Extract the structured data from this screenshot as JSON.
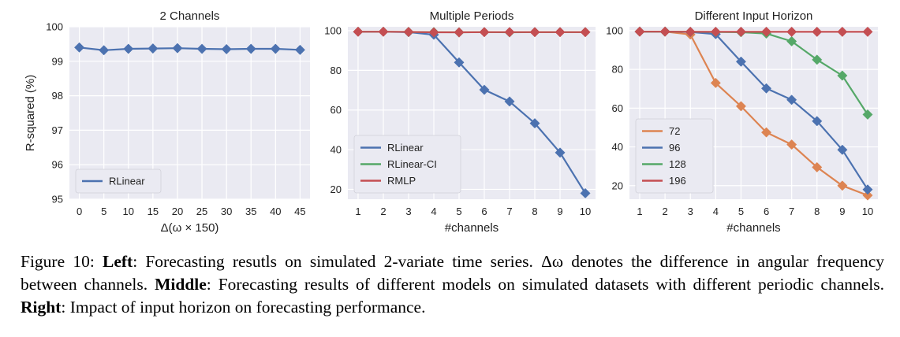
{
  "chart_data": [
    {
      "type": "line",
      "title": "2 Channels",
      "xlabel": "Δ(ω × 150)",
      "ylabel": "R-squared (%)",
      "x": [
        0,
        5,
        10,
        15,
        20,
        25,
        30,
        35,
        40,
        45
      ],
      "ylim": [
        95,
        100
      ],
      "yticks": [
        95,
        96,
        97,
        98,
        99,
        100
      ],
      "grid": true,
      "legend_position": "lower-left",
      "series": [
        {
          "name": "RLinear",
          "color": "#4c72b0",
          "values": [
            99.4,
            99.32,
            99.36,
            99.37,
            99.38,
            99.36,
            99.35,
            99.36,
            99.36,
            99.33
          ]
        }
      ]
    },
    {
      "type": "line",
      "title": "Multiple Periods",
      "xlabel": "#channels",
      "ylabel": "",
      "x": [
        1,
        2,
        3,
        4,
        5,
        6,
        7,
        8,
        9,
        10
      ],
      "ylim": [
        15,
        102
      ],
      "yticks": [
        20,
        40,
        60,
        80,
        100
      ],
      "grid": true,
      "legend_position": "lower-left",
      "series": [
        {
          "name": "RLinear",
          "color": "#4c72b0",
          "values": [
            99.5,
            99.5,
            99.3,
            98,
            84,
            70.2,
            64.3,
            53.3,
            38.5,
            18
          ]
        },
        {
          "name": "RLinear-CI",
          "color": "#55a868",
          "values": [
            99.5,
            99.5,
            99.4,
            99.3,
            99.2,
            99.3,
            99.2,
            99.3,
            99.3,
            99.3
          ]
        },
        {
          "name": "RMLP",
          "color": "#c44e52",
          "values": [
            99.5,
            99.5,
            99.4,
            99.2,
            99.2,
            99.3,
            99.3,
            99.3,
            99.3,
            99.3
          ]
        }
      ]
    },
    {
      "type": "line",
      "title": "Different Input Horizon",
      "xlabel": "#channels",
      "ylabel": "",
      "x": [
        1,
        2,
        3,
        4,
        5,
        6,
        7,
        8,
        9,
        10
      ],
      "ylim": [
        13,
        102
      ],
      "yticks": [
        20,
        40,
        60,
        80,
        100
      ],
      "grid": true,
      "legend_position": "lower-left",
      "series": [
        {
          "name": "72",
          "color": "#dd8452",
          "values": [
            99.5,
            99.5,
            98,
            73,
            61,
            47.5,
            41.2,
            29.5,
            20,
            15
          ]
        },
        {
          "name": "96",
          "color": "#4c72b0",
          "values": [
            99.5,
            99.5,
            99.3,
            98.2,
            84,
            70.2,
            64.3,
            53.3,
            38.5,
            18
          ]
        },
        {
          "name": "128",
          "color": "#55a868",
          "values": [
            99.5,
            99.5,
            99.4,
            99.3,
            99.2,
            98.5,
            94.5,
            85,
            76.8,
            56.7
          ]
        },
        {
          "name": "196",
          "color": "#c44e52",
          "values": [
            99.5,
            99.5,
            99.4,
            99.4,
            99.4,
            99.4,
            99.4,
            99.4,
            99.4,
            99.4
          ]
        }
      ]
    }
  ],
  "caption": {
    "figure_label": "Figure 10:",
    "left_label": "Left",
    "left_text": ": Forecasting resutls on simulated 2-variate time series. Δω denotes the difference in angular frequency between channels.",
    "middle_label": "Middle",
    "middle_text": ": Forecasting results of different models on simulated datasets with different periodic channels.",
    "right_label": "Right",
    "right_text": ": Impact of input horizon on forecasting performance."
  }
}
